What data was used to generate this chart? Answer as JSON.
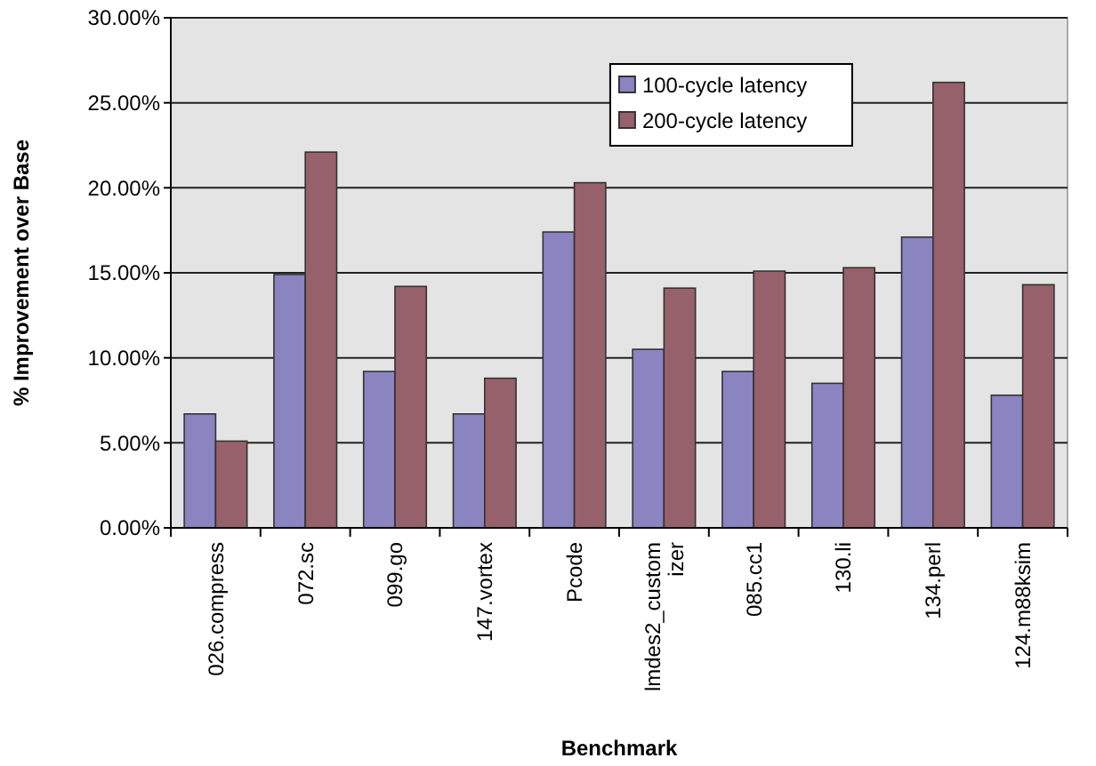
{
  "chart_data": {
    "type": "bar",
    "xlabel": "Benchmark",
    "ylabel": "% Improvement over Base",
    "categories": [
      "026.compress",
      "072.sc",
      "099.go",
      "147.vortex",
      "Pcode",
      "lmdes2_customizer",
      "085.cc1",
      "130.li",
      "134.perl",
      "124.m88ksim"
    ],
    "series": [
      {
        "name": "100-cycle latency",
        "color": "#8a84c0",
        "values": [
          6.7,
          14.9,
          9.2,
          6.7,
          17.4,
          10.5,
          9.2,
          8.5,
          17.1,
          7.8
        ]
      },
      {
        "name": "200-cycle latency",
        "color": "#96616b",
        "values": [
          5.1,
          22.1,
          14.2,
          8.8,
          20.3,
          14.1,
          15.1,
          15.3,
          26.2,
          14.3
        ]
      }
    ],
    "ylim": [
      0,
      30
    ],
    "yticks": [
      {
        "value": 0,
        "label": "0.00%"
      },
      {
        "value": 5,
        "label": "5.00%"
      },
      {
        "value": 10,
        "label": "10.00%"
      },
      {
        "value": 15,
        "label": "15.00%"
      },
      {
        "value": 20,
        "label": "20.00%"
      },
      {
        "value": 25,
        "label": "25.00%"
      },
      {
        "value": 30,
        "label": "30.00%"
      }
    ],
    "grid": "y",
    "legend": "top right"
  }
}
